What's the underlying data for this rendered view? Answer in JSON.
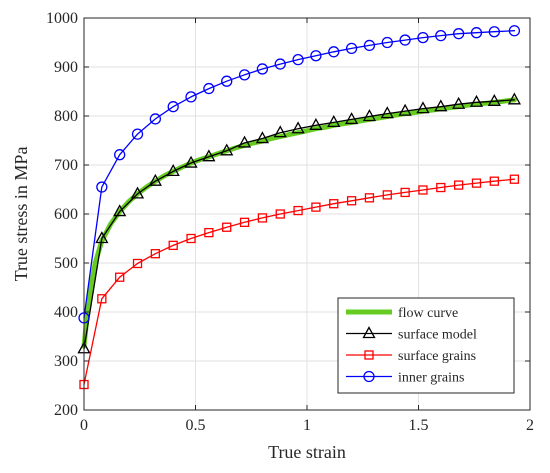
{
  "chart_data": {
    "type": "line",
    "xlabel": "True strain",
    "ylabel": "True stress in MPa",
    "xlim": [
      0,
      2
    ],
    "ylim": [
      200,
      1000
    ],
    "xticks": [
      0,
      0.5,
      1,
      1.5,
      2
    ],
    "xtick_labels": [
      "0",
      "0.5",
      "1",
      "1.5",
      "2"
    ],
    "yticks": [
      200,
      300,
      400,
      500,
      600,
      700,
      800,
      900,
      1000
    ],
    "ytick_labels": [
      "200",
      "300",
      "400",
      "500",
      "600",
      "700",
      "800",
      "900",
      "1000"
    ],
    "grid": true,
    "legend_position": "bottom-right",
    "series": [
      {
        "name": "flow curve",
        "color": "#66cc22",
        "marker": "none",
        "line_width": "thick",
        "x": [
          0,
          0.02,
          0.05,
          0.08,
          0.12,
          0.16,
          0.2,
          0.24,
          0.28,
          0.32,
          0.36,
          0.4,
          0.44,
          0.48,
          0.52,
          0.56,
          0.6,
          0.64,
          0.68,
          0.72,
          0.76,
          0.8,
          0.84,
          0.88,
          0.92,
          0.96,
          1.0,
          1.04,
          1.08,
          1.12,
          1.16,
          1.2,
          1.24,
          1.28,
          1.32,
          1.36,
          1.4,
          1.44,
          1.48,
          1.52,
          1.56,
          1.6,
          1.64,
          1.68,
          1.72,
          1.76,
          1.8,
          1.84,
          1.88,
          1.93
        ],
        "y": [
          330,
          420,
          500,
          545,
          580,
          605,
          625,
          641,
          655,
          667,
          678,
          687,
          696,
          704,
          711,
          717,
          723,
          729,
          735,
          740,
          745,
          749,
          754,
          758,
          762,
          766,
          770,
          774,
          777,
          781,
          784,
          787,
          790,
          793,
          796,
          799,
          802,
          805,
          807,
          810,
          812,
          815,
          817,
          819,
          822,
          824,
          826,
          828,
          830,
          833
        ]
      },
      {
        "name": "surface model",
        "color": "#000000",
        "marker": "triangle",
        "x": [
          0,
          0.08,
          0.16,
          0.24,
          0.32,
          0.4,
          0.48,
          0.56,
          0.64,
          0.72,
          0.8,
          0.88,
          0.96,
          1.04,
          1.12,
          1.2,
          1.28,
          1.36,
          1.44,
          1.52,
          1.6,
          1.68,
          1.76,
          1.84,
          1.93
        ],
        "y": [
          325,
          550,
          605,
          641,
          667,
          687,
          704,
          717,
          729,
          745,
          754,
          766,
          774,
          781,
          787,
          793,
          799,
          805,
          810,
          815,
          819,
          824,
          828,
          830,
          833
        ]
      },
      {
        "name": "surface grains",
        "color": "#ff0000",
        "marker": "square",
        "x": [
          0,
          0.08,
          0.16,
          0.24,
          0.32,
          0.4,
          0.48,
          0.56,
          0.64,
          0.72,
          0.8,
          0.88,
          0.96,
          1.04,
          1.12,
          1.2,
          1.28,
          1.36,
          1.44,
          1.52,
          1.6,
          1.68,
          1.76,
          1.84,
          1.93
        ],
        "y": [
          252,
          427,
          471,
          499,
          519,
          536,
          550,
          562,
          573,
          583,
          592,
          600,
          607,
          614,
          621,
          627,
          633,
          639,
          644,
          649,
          654,
          659,
          663,
          667,
          671
        ]
      },
      {
        "name": "inner grains",
        "color": "#0000ff",
        "marker": "circle",
        "x": [
          0,
          0.08,
          0.16,
          0.24,
          0.32,
          0.4,
          0.48,
          0.56,
          0.64,
          0.72,
          0.8,
          0.88,
          0.96,
          1.04,
          1.12,
          1.2,
          1.28,
          1.36,
          1.44,
          1.52,
          1.6,
          1.68,
          1.76,
          1.84,
          1.93
        ],
        "y": [
          388,
          655,
          721,
          763,
          794,
          819,
          839,
          856,
          871,
          884,
          896,
          906,
          915,
          923,
          931,
          938,
          944,
          950,
          955,
          960,
          964,
          968,
          970,
          972,
          974
        ]
      }
    ]
  }
}
